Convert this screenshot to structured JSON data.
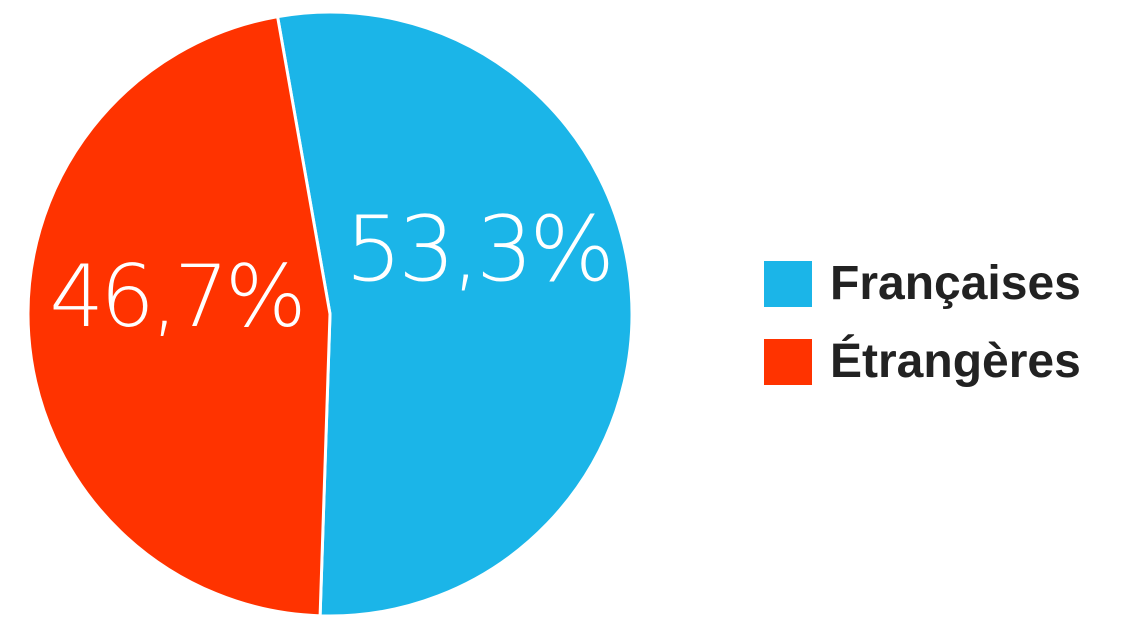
{
  "chart_data": {
    "type": "pie",
    "title": "",
    "slices": [
      {
        "label": "Françaises",
        "value": 53.3,
        "display": "53,3%",
        "color": "#1bb5e8"
      },
      {
        "label": "Étrangères",
        "value": 46.7,
        "display": "46,7%",
        "color": "#ff3300"
      }
    ],
    "start": "top",
    "direction": "clockwise",
    "legend_position": "right"
  }
}
